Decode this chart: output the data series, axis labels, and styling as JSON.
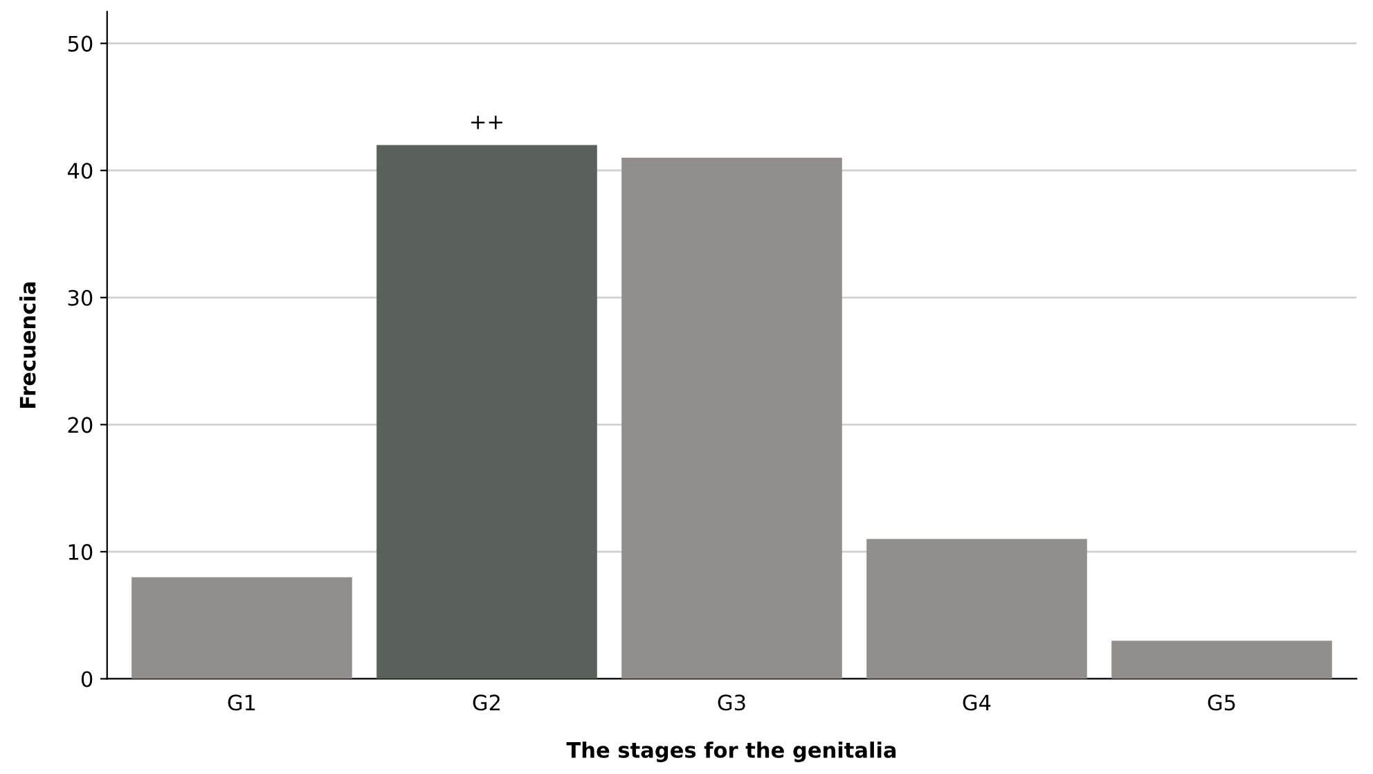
{
  "chart_data": {
    "type": "bar",
    "xlabel": "The stages for the genitalia",
    "ylabel": "Frecuencia",
    "categories": [
      "G1",
      "G2",
      "G3",
      "G4",
      "G5"
    ],
    "values": [
      8,
      42,
      41,
      11,
      3
    ],
    "colors": [
      "#928e8c",
      "#5a615b",
      "#928e8c",
      "#928e8c",
      "#928e8c"
    ],
    "ylim": [
      0,
      52.5
    ],
    "yticks": [
      0,
      10,
      20,
      30,
      40,
      50
    ],
    "grid": "y",
    "annotations": [
      {
        "text": "++",
        "x": "G2",
        "y": 42
      }
    ]
  }
}
